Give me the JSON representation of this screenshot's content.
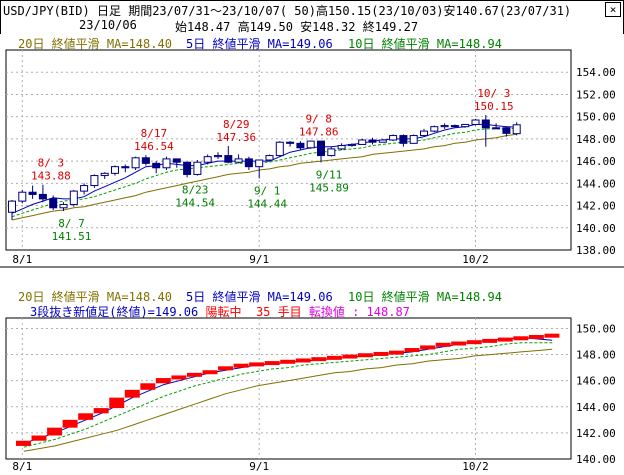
{
  "header": {
    "pair": "USD/JPY(BID)",
    "frame": "日足",
    "period_label": "期間",
    "period": "23/07/31～23/10/07",
    "bars": "( 50)",
    "high": "高150.15(23/10/03)",
    "low": "安140.67(23/07/31)",
    "date": "23/10/06",
    "ohlc": "始148.47 高149.50 安148.32 終149.27",
    "close_icon": "close-icon",
    "close_glyph": "×"
  },
  "top_panel": {
    "legend_20": "20日 終値平滑 MA=148.40",
    "legend_5": "5日 終値平滑 MA=149.06",
    "legend_10": "10日 終値平滑 MA=148.94"
  },
  "bottom_panel": {
    "legend_20": "20日 終値平滑 MA=148.40",
    "legend_5": "5日 終値平滑 MA=149.06",
    "legend_10": "10日 終値平滑 MA=148.94",
    "status_title": "3段抜き新値足(終値)=149.06",
    "status_trend": "陽転中",
    "status_count": "35 手目",
    "status_reversal": "転換値 : 148.87"
  },
  "colors": {
    "ma20": "#807000",
    "ma5": "#0000c0",
    "ma10": "#00a000",
    "candle": "#000080",
    "high_note": "#e00000",
    "low_note": "#008000",
    "kagi_up": "#ff0000",
    "grid": "#b0b0b0",
    "status_trend": "#ff0000",
    "status_reversal": "#e000e0"
  },
  "chart_data": [
    {
      "type": "candlestick",
      "x_ticks": [
        "8/1",
        "9/1",
        "10/2"
      ],
      "y_ticks": [
        "138.00",
        "140.00",
        "142.00",
        "144.00",
        "146.00",
        "148.00",
        "150.00",
        "152.00",
        "154.00"
      ],
      "ylim": [
        138,
        156
      ],
      "dates": [
        "7/31",
        "8/1",
        "8/2",
        "8/3",
        "8/4",
        "8/7",
        "8/8",
        "8/9",
        "8/10",
        "8/11",
        "8/14",
        "8/15",
        "8/16",
        "8/17",
        "8/18",
        "8/21",
        "8/22",
        "8/23",
        "8/24",
        "8/25",
        "8/28",
        "8/29",
        "8/30",
        "8/31",
        "9/1",
        "9/4",
        "9/5",
        "9/6",
        "9/7",
        "9/8",
        "9/11",
        "9/12",
        "9/13",
        "9/14",
        "9/15",
        "9/18",
        "9/19",
        "9/20",
        "9/21",
        "9/22",
        "9/25",
        "9/26",
        "9/27",
        "9/28",
        "9/29",
        "10/2",
        "10/3",
        "10/4",
        "10/5",
        "10/6"
      ],
      "ohlc": [
        [
          141.4,
          142.5,
          140.7,
          142.4
        ],
        [
          142.4,
          143.4,
          142.2,
          143.2
        ],
        [
          143.2,
          143.8,
          142.6,
          143.0
        ],
        [
          143.0,
          143.88,
          142.3,
          142.6
        ],
        [
          142.6,
          142.9,
          141.6,
          141.8
        ],
        [
          141.8,
          142.3,
          141.51,
          142.1
        ],
        [
          142.1,
          143.4,
          141.9,
          143.3
        ],
        [
          143.3,
          144.0,
          143.0,
          143.8
        ],
        [
          143.8,
          144.8,
          143.6,
          144.7
        ],
        [
          144.7,
          145.0,
          144.4,
          144.9
        ],
        [
          144.9,
          145.6,
          144.7,
          145.5
        ],
        [
          145.5,
          145.7,
          145.0,
          145.4
        ],
        [
          145.4,
          146.4,
          145.2,
          146.3
        ],
        [
          146.3,
          146.54,
          145.6,
          145.8
        ],
        [
          145.8,
          146.0,
          144.9,
          145.4
        ],
        [
          145.4,
          146.4,
          145.2,
          146.2
        ],
        [
          146.2,
          146.2,
          145.4,
          145.9
        ],
        [
          145.9,
          145.9,
          144.54,
          144.8
        ],
        [
          144.8,
          146.1,
          144.7,
          145.9
        ],
        [
          145.9,
          146.6,
          145.7,
          146.4
        ],
        [
          146.4,
          146.8,
          146.2,
          146.5
        ],
        [
          146.5,
          147.36,
          145.8,
          145.9
        ],
        [
          145.9,
          146.6,
          145.8,
          146.2
        ],
        [
          146.2,
          146.4,
          145.2,
          145.5
        ],
        [
          145.5,
          146.1,
          144.44,
          146.1
        ],
        [
          146.1,
          146.6,
          146.0,
          146.5
        ],
        [
          146.5,
          147.8,
          146.4,
          147.7
        ],
        [
          147.7,
          147.8,
          147.3,
          147.6
        ],
        [
          147.6,
          147.8,
          147.0,
          147.2
        ],
        [
          147.2,
          147.86,
          147.1,
          147.8
        ],
        [
          147.8,
          147.8,
          145.89,
          146.5
        ],
        [
          146.5,
          147.3,
          146.4,
          147.1
        ],
        [
          147.1,
          147.6,
          147.0,
          147.4
        ],
        [
          147.4,
          147.6,
          147.3,
          147.5
        ],
        [
          147.5,
          148.0,
          147.6,
          147.9
        ],
        [
          147.9,
          148.1,
          147.5,
          147.7
        ],
        [
          147.7,
          148.0,
          147.7,
          147.9
        ],
        [
          147.9,
          148.4,
          147.8,
          148.3
        ],
        [
          148.3,
          148.4,
          147.3,
          147.6
        ],
        [
          147.6,
          148.4,
          147.6,
          148.3
        ],
        [
          148.3,
          148.9,
          148.2,
          148.7
        ],
        [
          148.7,
          149.2,
          148.6,
          149.1
        ],
        [
          149.1,
          149.4,
          148.9,
          149.2
        ],
        [
          149.2,
          149.3,
          149.0,
          149.1
        ],
        [
          149.1,
          149.3,
          149.0,
          149.3
        ],
        [
          149.3,
          149.8,
          149.2,
          149.7
        ],
        [
          149.7,
          150.15,
          147.3,
          149.0
        ],
        [
          149.0,
          149.4,
          148.9,
          149.0
        ],
        [
          149.0,
          149.1,
          148.2,
          148.5
        ],
        [
          148.47,
          149.5,
          148.32,
          149.27
        ]
      ],
      "ma5": [
        141.3,
        141.7,
        142.1,
        142.4,
        142.7,
        142.6,
        142.6,
        142.8,
        143.3,
        143.7,
        144.1,
        144.5,
        145.0,
        145.5,
        145.6,
        145.8,
        145.7,
        145.6,
        145.6,
        145.8,
        146.0,
        146.0,
        146.0,
        146.0,
        146.0,
        146.0,
        146.4,
        146.8,
        147.0,
        147.2,
        147.3,
        147.3,
        147.4,
        147.5,
        147.6,
        147.8,
        147.9,
        148.0,
        148.0,
        148.0,
        148.2,
        148.5,
        148.8,
        149.0,
        149.1,
        149.3,
        149.3,
        149.2,
        149.1,
        149.06
      ],
      "ma10": [
        141.0,
        141.3,
        141.6,
        141.9,
        142.2,
        142.4,
        142.5,
        142.6,
        142.8,
        143.1,
        143.4,
        143.7,
        144.0,
        144.4,
        144.7,
        145.0,
        145.2,
        145.3,
        145.4,
        145.5,
        145.6,
        145.7,
        145.8,
        145.8,
        145.9,
        145.9,
        146.1,
        146.3,
        146.5,
        146.7,
        146.8,
        146.9,
        147.0,
        147.1,
        147.2,
        147.4,
        147.5,
        147.6,
        147.7,
        147.8,
        147.9,
        148.1,
        148.3,
        148.5,
        148.6,
        148.8,
        148.9,
        148.9,
        148.9,
        148.94
      ],
      "ma20": [
        140.7,
        140.9,
        141.1,
        141.3,
        141.5,
        141.6,
        141.8,
        141.9,
        142.1,
        142.3,
        142.5,
        142.7,
        142.9,
        143.2,
        143.4,
        143.6,
        143.8,
        144.0,
        144.2,
        144.4,
        144.6,
        144.8,
        144.9,
        145.0,
        145.2,
        145.3,
        145.5,
        145.6,
        145.8,
        145.9,
        146.0,
        146.1,
        146.2,
        146.3,
        146.4,
        146.6,
        146.7,
        146.8,
        146.9,
        147.0,
        147.1,
        147.3,
        147.4,
        147.6,
        147.7,
        147.9,
        148.0,
        148.1,
        148.3,
        148.4
      ],
      "annotations": [
        {
          "kind": "high",
          "date": "8/3",
          "text": "8/ 3",
          "value": "143.88"
        },
        {
          "kind": "high",
          "date": "8/17",
          "text": "8/17",
          "value": "146.54"
        },
        {
          "kind": "high",
          "date": "8/29",
          "text": "8/29",
          "value": "147.36"
        },
        {
          "kind": "high",
          "date": "9/8",
          "text": "9/ 8",
          "value": "147.86"
        },
        {
          "kind": "high",
          "date": "10/3",
          "text": "10/ 3",
          "value": "150.15"
        },
        {
          "kind": "low",
          "date": "8/7",
          "text": "8/ 7",
          "value": "141.51"
        },
        {
          "kind": "low",
          "date": "8/23",
          "text": "8/23",
          "value": "144.54"
        },
        {
          "kind": "low",
          "date": "9/1",
          "text": "9/ 1",
          "value": "144.44"
        },
        {
          "kind": "low",
          "date": "9/11",
          "text": "9/11",
          "value": "145.89"
        }
      ]
    },
    {
      "type": "new-price-bars",
      "x_ticks": [
        "8/1",
        "9/1",
        "10/2"
      ],
      "y_ticks": [
        "140.00",
        "142.00",
        "144.00",
        "146.00",
        "148.00",
        "150.00"
      ],
      "ylim": [
        140,
        150.8
      ],
      "bars": [
        {
          "from": 141.0,
          "to": 141.4
        },
        {
          "from": 141.4,
          "to": 141.8
        },
        {
          "from": 141.8,
          "to": 142.4
        },
        {
          "from": 142.4,
          "to": 143.0
        },
        {
          "from": 143.0,
          "to": 143.5
        },
        {
          "from": 143.5,
          "to": 143.9
        },
        {
          "from": 143.9,
          "to": 144.7
        },
        {
          "from": 144.7,
          "to": 145.3
        },
        {
          "from": 145.3,
          "to": 145.8
        },
        {
          "from": 145.8,
          "to": 146.2
        },
        {
          "from": 146.2,
          "to": 146.4
        },
        {
          "from": 146.4,
          "to": 146.6
        },
        {
          "from": 146.6,
          "to": 146.8
        },
        {
          "from": 146.8,
          "to": 147.1
        },
        {
          "from": 147.1,
          "to": 147.3
        },
        {
          "from": 147.3,
          "to": 147.4
        },
        {
          "from": 147.4,
          "to": 147.5
        },
        {
          "from": 147.5,
          "to": 147.6
        },
        {
          "from": 147.6,
          "to": 147.7
        },
        {
          "from": 147.7,
          "to": 147.8
        },
        {
          "from": 147.8,
          "to": 147.9
        },
        {
          "from": 147.9,
          "to": 148.0
        },
        {
          "from": 148.0,
          "to": 148.1
        },
        {
          "from": 148.1,
          "to": 148.2
        },
        {
          "from": 148.2,
          "to": 148.3
        },
        {
          "from": 148.3,
          "to": 148.5
        },
        {
          "from": 148.5,
          "to": 148.7
        },
        {
          "from": 148.7,
          "to": 148.9
        },
        {
          "from": 148.9,
          "to": 149.0
        },
        {
          "from": 149.0,
          "to": 149.1
        },
        {
          "from": 149.1,
          "to": 149.2
        },
        {
          "from": 149.2,
          "to": 149.3
        },
        {
          "from": 149.3,
          "to": 149.4
        },
        {
          "from": 149.4,
          "to": 149.5
        },
        {
          "from": 149.5,
          "to": 149.6
        }
      ],
      "ma5": [
        141.2,
        141.6,
        142.0,
        142.5,
        143.0,
        143.5,
        144.1,
        144.7,
        145.2,
        145.7,
        146.0,
        146.3,
        146.6,
        146.8,
        147.0,
        147.2,
        147.3,
        147.4,
        147.5,
        147.6,
        147.7,
        147.8,
        147.9,
        148.0,
        148.1,
        148.2,
        148.4,
        148.6,
        148.8,
        149.0,
        149.1,
        149.2,
        149.3,
        149.2,
        149.1
      ],
      "ma10": [
        140.9,
        141.2,
        141.5,
        141.9,
        142.3,
        142.8,
        143.3,
        143.8,
        144.3,
        144.8,
        145.2,
        145.6,
        145.9,
        146.2,
        146.5,
        146.7,
        146.9,
        147.0,
        147.2,
        147.3,
        147.4,
        147.5,
        147.6,
        147.7,
        147.8,
        147.9,
        148.0,
        148.2,
        148.4,
        148.5,
        148.6,
        148.8,
        148.9,
        148.9,
        148.9
      ],
      "ma20": [
        140.6,
        140.8,
        141.0,
        141.3,
        141.6,
        141.9,
        142.2,
        142.6,
        143.0,
        143.4,
        143.8,
        144.2,
        144.6,
        145.0,
        145.3,
        145.6,
        145.8,
        146.0,
        146.2,
        146.4,
        146.6,
        146.7,
        146.9,
        147.0,
        147.2,
        147.3,
        147.5,
        147.6,
        147.7,
        147.9,
        148.0,
        148.1,
        148.2,
        148.3,
        148.4
      ]
    }
  ]
}
